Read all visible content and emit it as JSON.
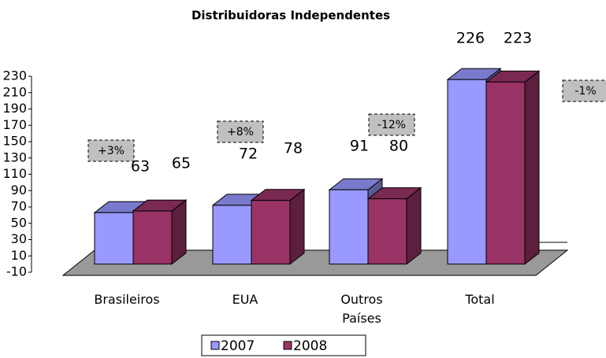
{
  "chart_data": {
    "type": "bar3d",
    "title": "Distribuidoras Independentes",
    "categories": [
      "Brasileiros",
      "EUA",
      "Outros Países",
      "Total"
    ],
    "series": [
      {
        "name": "2007",
        "color": "#9999ff",
        "values": [
          63,
          72,
          91,
          226
        ]
      },
      {
        "name": "2008",
        "color": "#993366",
        "values": [
          65,
          78,
          80,
          223
        ]
      }
    ],
    "annotations": [
      "+3%",
      "+8%",
      "-12%",
      "-1%"
    ],
    "ylim": [
      -10,
      230
    ],
    "yticks": [
      -10,
      10,
      30,
      50,
      70,
      90,
      110,
      130,
      150,
      170,
      190,
      210,
      230
    ],
    "legend": "bottom"
  }
}
